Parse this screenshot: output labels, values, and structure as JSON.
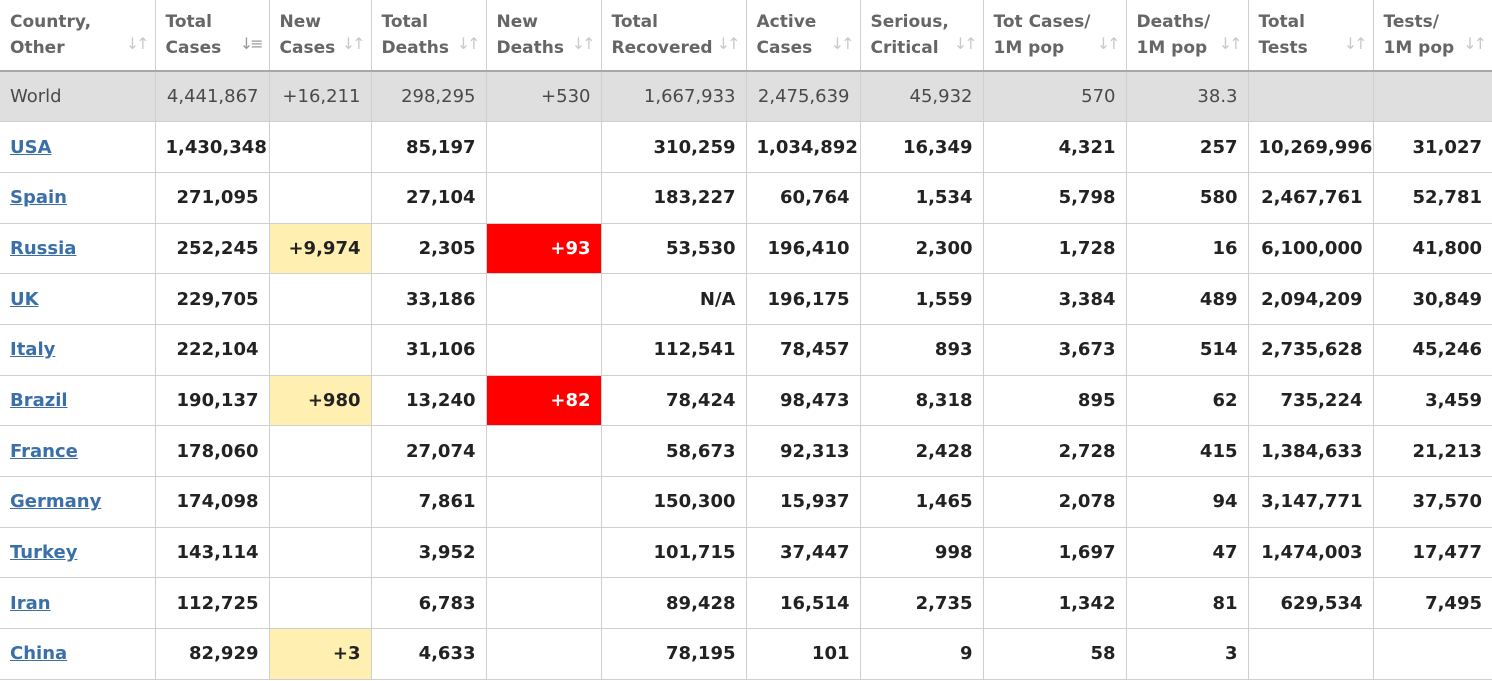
{
  "headers": [
    {
      "line1": "Country,",
      "line2": "Other",
      "sort_icon": "sort-arrows-icon"
    },
    {
      "line1": "Total",
      "line2": "Cases",
      "sort_icon": "sort-desc-active-icon"
    },
    {
      "line1": "New",
      "line2": "Cases",
      "sort_icon": "sort-arrows-icon"
    },
    {
      "line1": "Total",
      "line2": "Deaths",
      "sort_icon": "sort-arrows-icon"
    },
    {
      "line1": "New",
      "line2": "Deaths",
      "sort_icon": "sort-arrows-icon"
    },
    {
      "line1": "Total",
      "line2": "Recovered",
      "sort_icon": "sort-arrows-icon"
    },
    {
      "line1": "Active",
      "line2": "Cases",
      "sort_icon": "sort-arrows-icon"
    },
    {
      "line1": "Serious,",
      "line2": "Critical",
      "sort_icon": "sort-arrows-icon"
    },
    {
      "line1": "Tot Cases/",
      "line2": "1M pop",
      "sort_icon": "sort-arrows-icon"
    },
    {
      "line1": "Deaths/",
      "line2": "1M pop",
      "sort_icon": "sort-arrows-icon"
    },
    {
      "line1": "Total",
      "line2": "Tests",
      "sort_icon": "sort-arrows-icon"
    },
    {
      "line1": "Tests/",
      "line2": "1M pop",
      "sort_icon": "sort-arrows-icon"
    }
  ],
  "world": {
    "country": "World",
    "total_cases": "4,441,867",
    "new_cases": "+16,211",
    "total_deaths": "298,295",
    "new_deaths": "+530",
    "total_recovered": "1,667,933",
    "active_cases": "2,475,639",
    "serious_critical": "45,932",
    "cases_per_1m": "570",
    "deaths_per_1m": "38.3",
    "total_tests": "",
    "tests_per_1m": ""
  },
  "rows": [
    {
      "country": "USA",
      "total_cases": "1,430,348",
      "new_cases": "",
      "total_deaths": "85,197",
      "new_deaths": "",
      "total_recovered": "310,259",
      "active_cases": "1,034,892",
      "serious_critical": "16,349",
      "cases_per_1m": "4,321",
      "deaths_per_1m": "257",
      "total_tests": "10,269,996",
      "tests_per_1m": "31,027"
    },
    {
      "country": "Spain",
      "total_cases": "271,095",
      "new_cases": "",
      "total_deaths": "27,104",
      "new_deaths": "",
      "total_recovered": "183,227",
      "active_cases": "60,764",
      "serious_critical": "1,534",
      "cases_per_1m": "5,798",
      "deaths_per_1m": "580",
      "total_tests": "2,467,761",
      "tests_per_1m": "52,781"
    },
    {
      "country": "Russia",
      "total_cases": "252,245",
      "new_cases": "+9,974",
      "total_deaths": "2,305",
      "new_deaths": "+93",
      "total_recovered": "53,530",
      "active_cases": "196,410",
      "serious_critical": "2,300",
      "cases_per_1m": "1,728",
      "deaths_per_1m": "16",
      "total_tests": "6,100,000",
      "tests_per_1m": "41,800"
    },
    {
      "country": "UK",
      "total_cases": "229,705",
      "new_cases": "",
      "total_deaths": "33,186",
      "new_deaths": "",
      "total_recovered": "N/A",
      "active_cases": "196,175",
      "serious_critical": "1,559",
      "cases_per_1m": "3,384",
      "deaths_per_1m": "489",
      "total_tests": "2,094,209",
      "tests_per_1m": "30,849"
    },
    {
      "country": "Italy",
      "total_cases": "222,104",
      "new_cases": "",
      "total_deaths": "31,106",
      "new_deaths": "",
      "total_recovered": "112,541",
      "active_cases": "78,457",
      "serious_critical": "893",
      "cases_per_1m": "3,673",
      "deaths_per_1m": "514",
      "total_tests": "2,735,628",
      "tests_per_1m": "45,246"
    },
    {
      "country": "Brazil",
      "total_cases": "190,137",
      "new_cases": "+980",
      "total_deaths": "13,240",
      "new_deaths": "+82",
      "total_recovered": "78,424",
      "active_cases": "98,473",
      "serious_critical": "8,318",
      "cases_per_1m": "895",
      "deaths_per_1m": "62",
      "total_tests": "735,224",
      "tests_per_1m": "3,459"
    },
    {
      "country": "France",
      "total_cases": "178,060",
      "new_cases": "",
      "total_deaths": "27,074",
      "new_deaths": "",
      "total_recovered": "58,673",
      "active_cases": "92,313",
      "serious_critical": "2,428",
      "cases_per_1m": "2,728",
      "deaths_per_1m": "415",
      "total_tests": "1,384,633",
      "tests_per_1m": "21,213"
    },
    {
      "country": "Germany",
      "total_cases": "174,098",
      "new_cases": "",
      "total_deaths": "7,861",
      "new_deaths": "",
      "total_recovered": "150,300",
      "active_cases": "15,937",
      "serious_critical": "1,465",
      "cases_per_1m": "2,078",
      "deaths_per_1m": "94",
      "total_tests": "3,147,771",
      "tests_per_1m": "37,570"
    },
    {
      "country": "Turkey",
      "total_cases": "143,114",
      "new_cases": "",
      "total_deaths": "3,952",
      "new_deaths": "",
      "total_recovered": "101,715",
      "active_cases": "37,447",
      "serious_critical": "998",
      "cases_per_1m": "1,697",
      "deaths_per_1m": "47",
      "total_tests": "1,474,003",
      "tests_per_1m": "17,477"
    },
    {
      "country": "Iran",
      "total_cases": "112,725",
      "new_cases": "",
      "total_deaths": "6,783",
      "new_deaths": "",
      "total_recovered": "89,428",
      "active_cases": "16,514",
      "serious_critical": "2,735",
      "cases_per_1m": "1,342",
      "deaths_per_1m": "81",
      "total_tests": "629,534",
      "tests_per_1m": "7,495"
    },
    {
      "country": "China",
      "total_cases": "82,929",
      "new_cases": "+3",
      "total_deaths": "4,633",
      "new_deaths": "",
      "total_recovered": "78,195",
      "active_cases": "101",
      "serious_critical": "9",
      "cases_per_1m": "58",
      "deaths_per_1m": "3",
      "total_tests": "",
      "tests_per_1m": ""
    }
  ],
  "colors": {
    "new_cases_highlight": "#fff0b2",
    "new_deaths_highlight": "#ff0000",
    "world_row_bg": "#dfdfdf",
    "country_link": "#3a6fa8"
  }
}
